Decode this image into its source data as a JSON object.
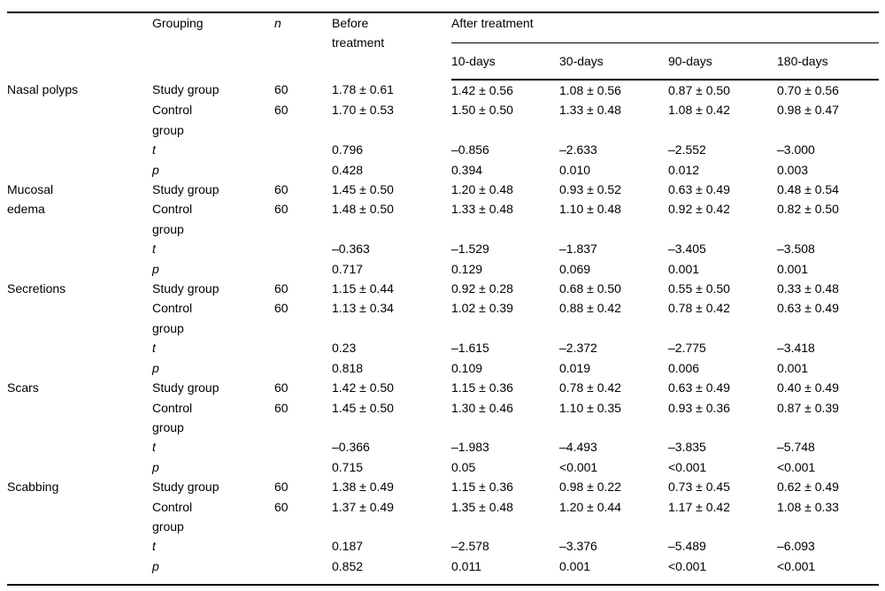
{
  "table": {
    "header": {
      "grouping": "Grouping",
      "n": "n",
      "before": "Before treatment",
      "after": "After treatment",
      "days": [
        "10-days",
        "30-days",
        "90-days",
        "180-days"
      ]
    },
    "sections": [
      {
        "name": "Nasal polyps",
        "rows": [
          {
            "grouping": "Study group",
            "n": "60",
            "before": "1.78 ± 0.61",
            "after": [
              "1.42 ± 0.56",
              "1.08 ± 0.56",
              "0.87 ± 0.50",
              "0.70 ± 0.56"
            ]
          },
          {
            "grouping": "Control group",
            "n": "60",
            "before": "1.70 ± 0.53",
            "after": [
              "1.50 ± 0.50",
              "1.33 ± 0.48",
              "1.08 ± 0.42",
              "0.98 ± 0.47"
            ]
          },
          {
            "grouping": "t",
            "n": "",
            "before": "0.796",
            "after": [
              "–0.856",
              "–2.633",
              "–2.552",
              "–3.000"
            ]
          },
          {
            "grouping": "p",
            "n": "",
            "before": "0.428",
            "after": [
              "0.394",
              "0.010",
              "0.012",
              "0.003"
            ]
          }
        ]
      },
      {
        "name": "Mucosal edema",
        "rows": [
          {
            "grouping": "Study group",
            "n": "60",
            "before": "1.45 ± 0.50",
            "after": [
              "1.20 ± 0.48",
              "0.93 ± 0.52",
              "0.63 ± 0.49",
              "0.48 ± 0.54"
            ]
          },
          {
            "grouping": "Control group",
            "n": "60",
            "before": "1.48 ± 0.50",
            "after": [
              "1.33 ± 0.48",
              "1.10 ± 0.48",
              "0.92 ± 0.42",
              "0.82 ± 0.50"
            ]
          },
          {
            "grouping": "t",
            "n": "",
            "before": "–0.363",
            "after": [
              "–1.529",
              "–1.837",
              "–3.405",
              "–3.508"
            ]
          },
          {
            "grouping": "p",
            "n": "",
            "before": "0.717",
            "after": [
              "0.129",
              "0.069",
              "0.001",
              "0.001"
            ]
          }
        ]
      },
      {
        "name": "Secretions",
        "rows": [
          {
            "grouping": "Study group",
            "n": "60",
            "before": "1.15 ± 0.44",
            "after": [
              "0.92 ± 0.28",
              "0.68 ± 0.50",
              "0.55 ± 0.50",
              "0.33 ± 0.48"
            ]
          },
          {
            "grouping": "Control group",
            "n": "60",
            "before": "1.13 ± 0.34",
            "after": [
              "1.02 ± 0.39",
              "0.88 ± 0.42",
              "0.78 ± 0.42",
              "0.63 ± 0.49"
            ]
          },
          {
            "grouping": "t",
            "n": "",
            "before": "0.23",
            "after": [
              "–1.615",
              "–2.372",
              "–2.775",
              "–3.418"
            ]
          },
          {
            "grouping": "p",
            "n": "",
            "before": "0.818",
            "after": [
              "0.109",
              "0.019",
              "0.006",
              "0.001"
            ]
          }
        ]
      },
      {
        "name": "Scars",
        "rows": [
          {
            "grouping": "Study group",
            "n": "60",
            "before": "1.42 ± 0.50",
            "after": [
              "1.15 ± 0.36",
              "0.78 ± 0.42",
              "0.63 ± 0.49",
              "0.40 ± 0.49"
            ]
          },
          {
            "grouping": "Control group",
            "n": "60",
            "before": "1.45 ± 0.50",
            "after": [
              "1.30 ± 0.46",
              "1.10 ± 0.35",
              "0.93 ± 0.36",
              "0.87 ± 0.39"
            ]
          },
          {
            "grouping": "t",
            "n": "",
            "before": "–0.366",
            "after": [
              "–1.983",
              "–4.493",
              "–3.835",
              "–5.748"
            ]
          },
          {
            "grouping": "p",
            "n": "",
            "before": "0.715",
            "after": [
              "0.05",
              "<0.001",
              "<0.001",
              "<0.001"
            ]
          }
        ]
      },
      {
        "name": "Scabbing",
        "rows": [
          {
            "grouping": "Study group",
            "n": "60",
            "before": "1.38 ± 0.49",
            "after": [
              "1.15 ± 0.36",
              "0.98 ± 0.22",
              "0.73 ± 0.45",
              "0.62 ± 0.49"
            ]
          },
          {
            "grouping": "Control group",
            "n": "60",
            "before": "1.37 ± 0.49",
            "after": [
              "1.35 ± 0.48",
              "1.20 ± 0.44",
              "1.17 ± 0.42",
              "1.08 ± 0.33"
            ]
          },
          {
            "grouping": "t",
            "n": "",
            "before": "0.187",
            "after": [
              "–2.578",
              "–3.376",
              "–5.489",
              "–6.093"
            ]
          },
          {
            "grouping": "p",
            "n": "",
            "before": "0.852",
            "after": [
              "0.011",
              "0.001",
              "<0.001",
              "<0.001"
            ]
          }
        ]
      }
    ]
  }
}
